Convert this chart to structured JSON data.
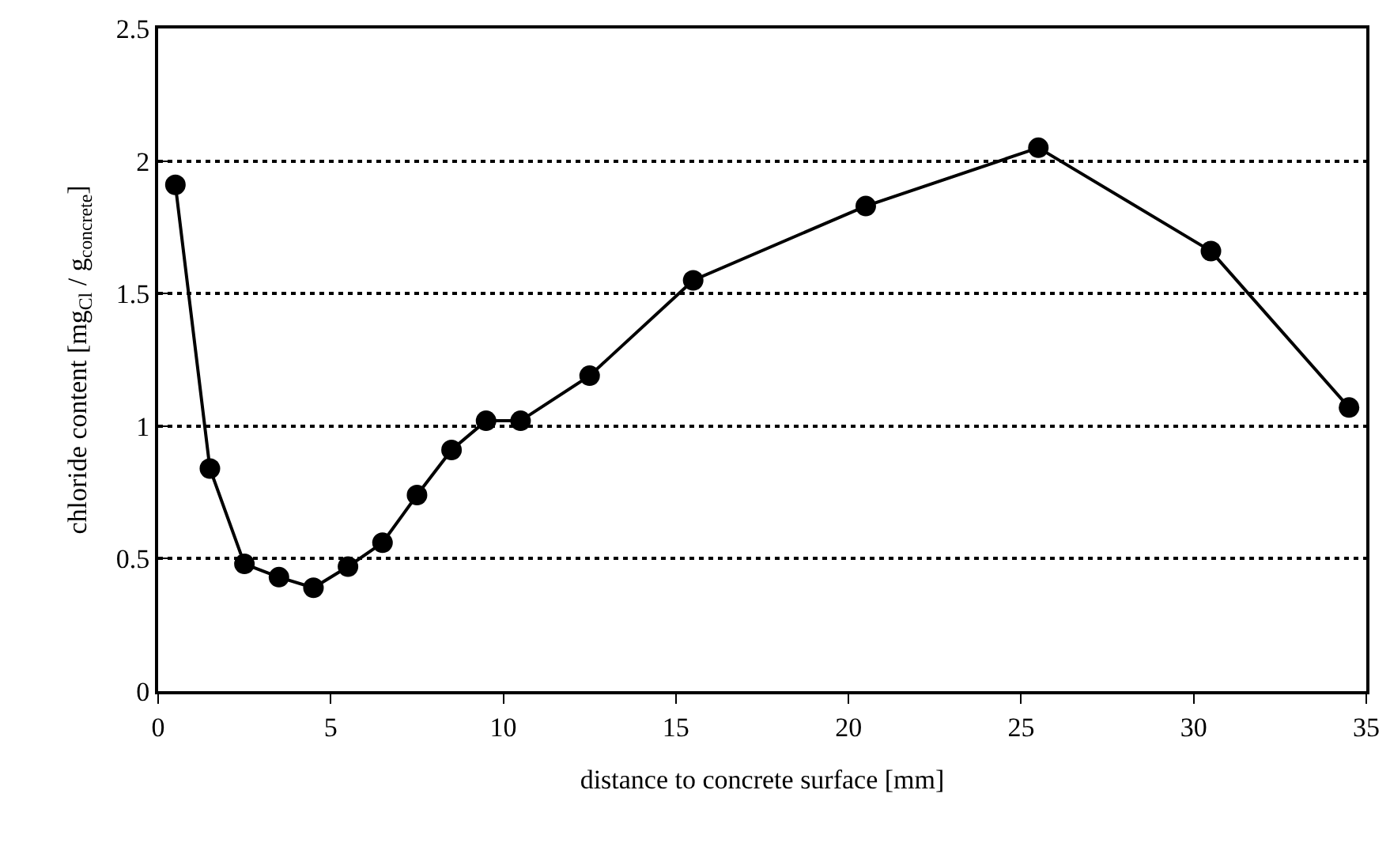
{
  "chart_data": {
    "type": "line",
    "xlabel": "distance to concrete surface [mm]",
    "ylabel": "chloride content [mg$_{Cl}$ / g$_{concrete}$]",
    "x": [
      0.5,
      1.5,
      2.5,
      3.5,
      4.5,
      5.5,
      6.5,
      7.5,
      8.5,
      9.5,
      10.5,
      12.5,
      15.5,
      20.5,
      25.5,
      30.5,
      34.5
    ],
    "series": [
      {
        "color": "#000000",
        "values": [
          1.91,
          0.84,
          0.48,
          0.43,
          0.39,
          0.47,
          0.56,
          0.74,
          0.91,
          1.02,
          1.02,
          1.19,
          1.55,
          1.83,
          2.05,
          1.66,
          1.07
        ]
      }
    ],
    "xlim": [
      0,
      35
    ],
    "xticks": [
      0,
      5,
      10,
      15,
      20,
      25,
      30,
      35
    ],
    "ylim": [
      0,
      2.5
    ],
    "yticks": [
      0,
      0.5,
      1,
      1.5,
      2,
      2.5
    ],
    "grid": "y",
    "marker": "circle",
    "line_style": "solid"
  }
}
